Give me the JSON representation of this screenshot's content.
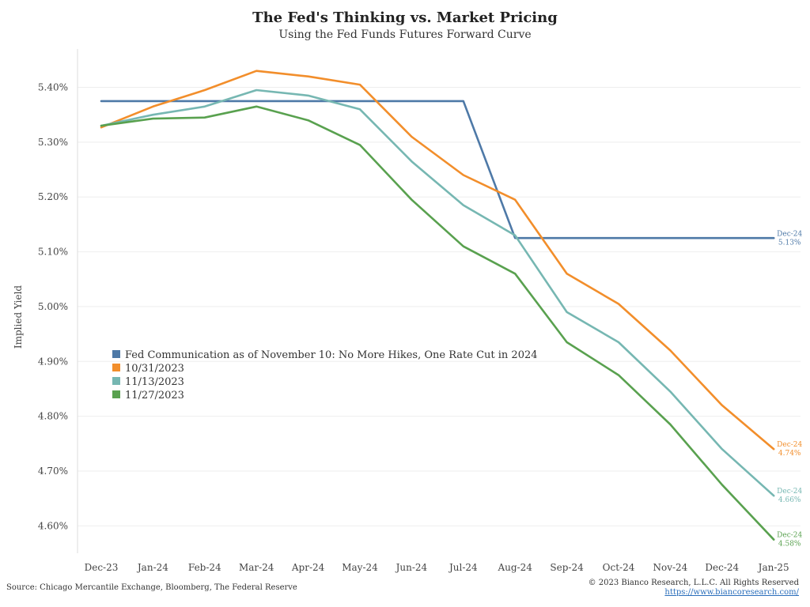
{
  "chart_data": {
    "type": "line",
    "title": "The Fed's Thinking vs. Market Pricing",
    "subtitle": "Using the Fed Funds Futures Forward Curve",
    "ylabel": "Implied Yield",
    "xlabel": "",
    "categories": [
      "Dec-23",
      "Jan-24",
      "Feb-24",
      "Mar-24",
      "Apr-24",
      "May-24",
      "Jun-24",
      "Jul-24",
      "Aug-24",
      "Sep-24",
      "Oct-24",
      "Nov-24",
      "Dec-24",
      "Jan-25"
    ],
    "ylim": [
      4.55,
      5.47
    ],
    "yticks": [
      4.6,
      4.7,
      4.8,
      4.9,
      5.0,
      5.1,
      5.2,
      5.3,
      5.4
    ],
    "ytick_labels": [
      "4.60%",
      "4.70%",
      "4.80%",
      "4.90%",
      "5.00%",
      "5.10%",
      "5.20%",
      "5.30%",
      "5.40%"
    ],
    "grid": "horizontal",
    "legend_position": "middle-left",
    "series": [
      {
        "name": "Fed Communication as of November 10: No More Hikes, One Rate Cut in 2024",
        "color": "#4e79a7",
        "x": [
          0,
          7,
          8.0,
          13
        ],
        "values": [
          5.375,
          5.375,
          5.125,
          5.125
        ],
        "end_label": [
          "Dec-24",
          "5.13%"
        ]
      },
      {
        "name": "10/31/2023",
        "color": "#f28e2b",
        "x": [
          0,
          1,
          2,
          3,
          4,
          5,
          6,
          7,
          8,
          9,
          10,
          11,
          12,
          13
        ],
        "values": [
          5.327,
          5.365,
          5.395,
          5.43,
          5.42,
          5.405,
          5.31,
          5.24,
          5.195,
          5.06,
          5.005,
          4.92,
          4.82,
          4.74
        ],
        "end_label": [
          "Dec-24",
          "4.74%"
        ]
      },
      {
        "name": "11/13/2023",
        "color": "#76b7b2",
        "x": [
          0,
          1,
          2,
          3,
          4,
          5,
          6,
          7,
          8,
          9,
          10,
          11,
          12,
          13
        ],
        "values": [
          5.33,
          5.35,
          5.365,
          5.395,
          5.385,
          5.36,
          5.265,
          5.185,
          5.13,
          4.99,
          4.935,
          4.845,
          4.74,
          4.655
        ],
        "end_label": [
          "Dec-24",
          "4.66%"
        ]
      },
      {
        "name": "11/27/2023",
        "color": "#59a14f",
        "x": [
          0,
          1,
          2,
          3,
          4,
          5,
          6,
          7,
          8,
          9,
          10,
          11,
          12,
          13
        ],
        "values": [
          5.33,
          5.343,
          5.345,
          5.365,
          5.34,
          5.295,
          5.195,
          5.11,
          5.06,
          4.935,
          4.875,
          4.785,
          4.675,
          4.575
        ],
        "end_label": [
          "Dec-24",
          "4.58%"
        ]
      }
    ]
  },
  "footer": {
    "source": "Source: Chicago Mercantile Exchange, Bloomberg, The Federal Reserve",
    "copyright": "© 2023 Bianco Research, L.L.C. All Rights Reserved",
    "url": "https://www.biancoresearch.com/"
  }
}
